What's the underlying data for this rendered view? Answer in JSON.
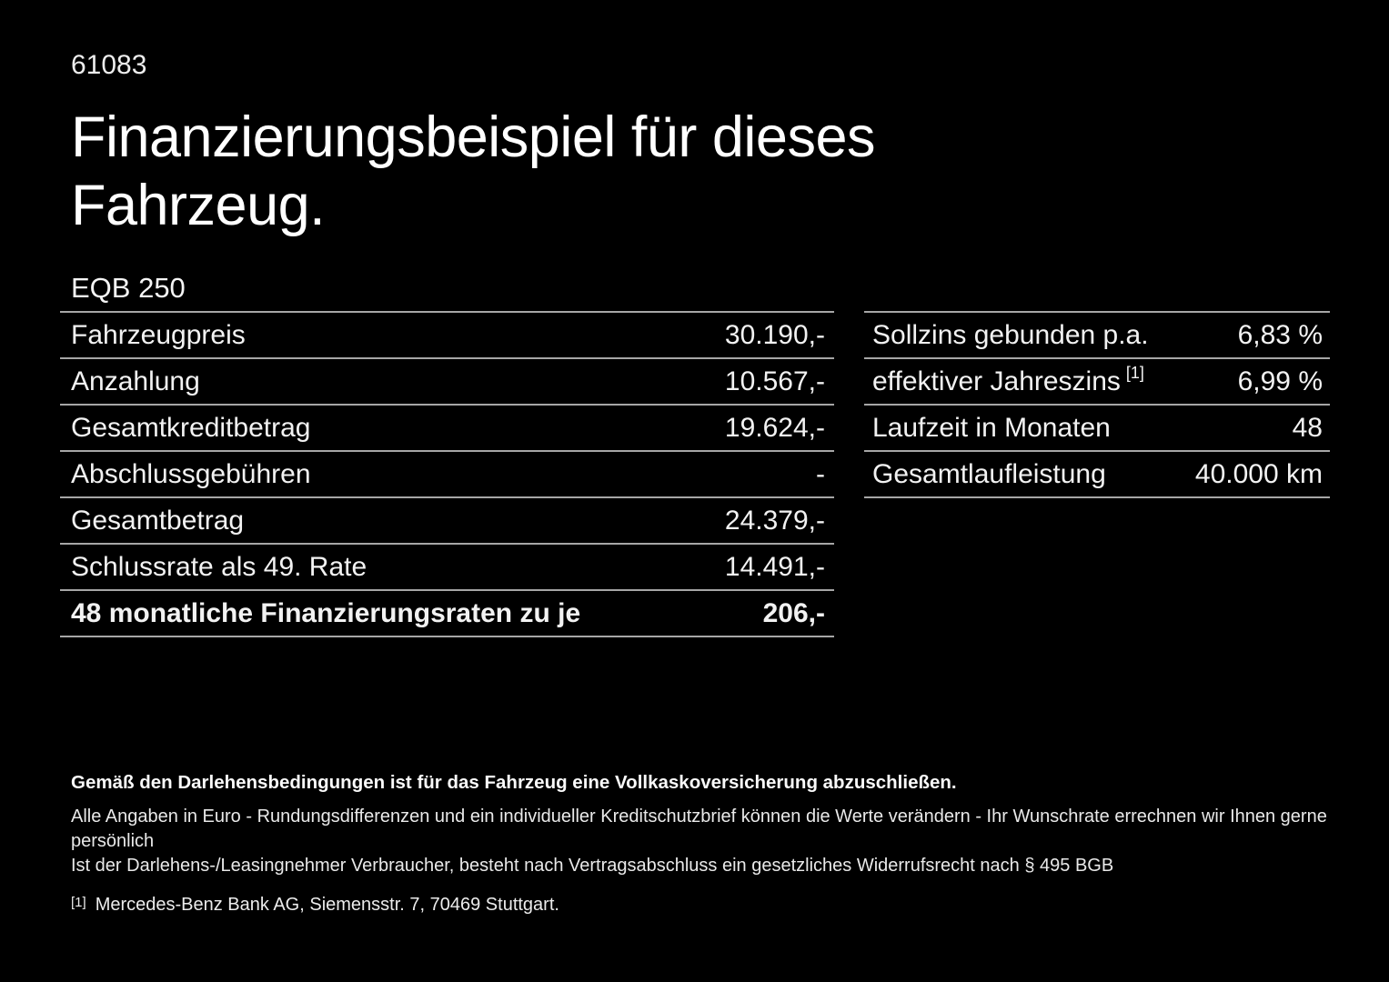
{
  "page": {
    "id_number": "61083",
    "title_line1": "Finanzierungsbeispiel für dieses",
    "title_line2": "Fahrzeug.",
    "model": "EQB 250"
  },
  "finance_table": {
    "rows": [
      {
        "label": "Fahrzeugpreis",
        "value": "30.190,-"
      },
      {
        "label": "Anzahlung",
        "value": "10.567,-"
      },
      {
        "label": "Gesamtkreditbetrag",
        "value": "19.624,-"
      },
      {
        "label": "Abschlussgebühren",
        "value": "-"
      },
      {
        "label": "Gesamtbetrag",
        "value": "24.379,-"
      },
      {
        "label": "Schlussrate als 49. Rate",
        "value": "14.491,-"
      },
      {
        "label": "48 monatliche Finanzierungsraten zu je",
        "value": "206,-"
      }
    ]
  },
  "conditions_table": {
    "rows": [
      {
        "label": "Sollzins gebunden p.a.",
        "sup": "",
        "value": "6,83 %"
      },
      {
        "label": "effektiver Jahreszins",
        "sup": "[1]",
        "value": "6,99 %"
      },
      {
        "label": "Laufzeit in Monaten",
        "sup": "",
        "value": "48"
      },
      {
        "label": "Gesamtlaufleistung",
        "sup": "",
        "value": "40.000 km"
      }
    ]
  },
  "notes": {
    "insurance_note": "Gemäß den Darlehensbedingungen ist für das Fahrzeug eine Vollkaskoversicherung abzuschließen.",
    "disclaimer_line1": "Alle Angaben in Euro - Rundungsdifferenzen und ein individueller Kreditschutzbrief können die Werte verändern - Ihr Wunschrate errechnen wir Ihnen gerne persönlich",
    "disclaimer_line2": "Ist der Darlehens-/Leasingnehmer Verbraucher, besteht nach Vertragsabschluss ein gesetzliches Widerrufsrecht nach § 495 BGB",
    "reference_marker": "[1]",
    "reference_text": "Mercedes-Benz Bank AG, Siemensstr. 7, 70469 Stuttgart."
  },
  "colors": {
    "background": "#000000",
    "text": "#f2f2f2",
    "divider": "#a6a6a6"
  }
}
